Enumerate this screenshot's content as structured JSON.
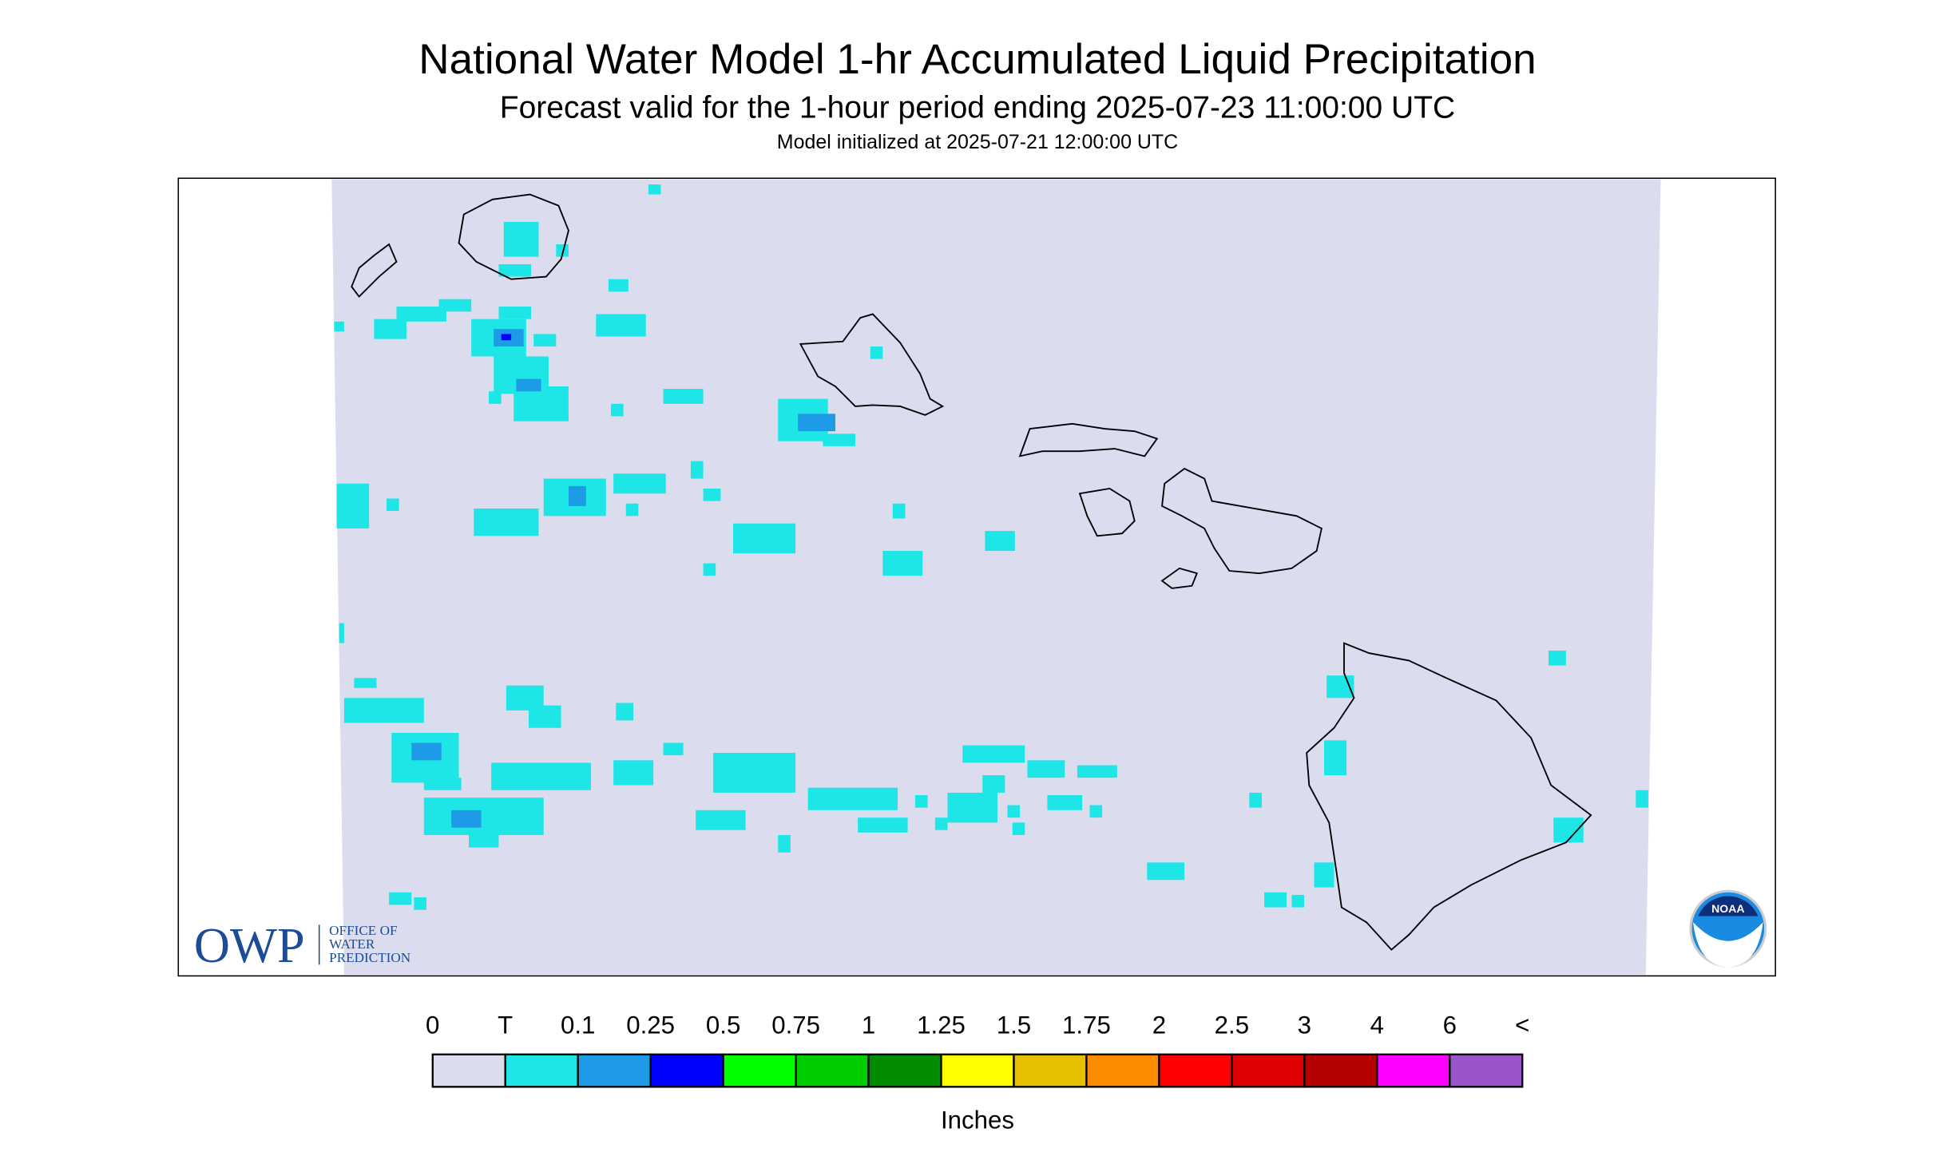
{
  "header": {
    "title": "National Water Model 1-hr Accumulated Liquid Precipitation",
    "subtitle": "Forecast valid for the 1-hour period ending 2025-07-23 11:00:00 UTC",
    "init": "Model initialized at 2025-07-21 12:00:00 UTC"
  },
  "logos": {
    "owp": "OWP",
    "owp_lines": [
      "OFFICE OF",
      "WATER",
      "PREDICTION"
    ],
    "noaa": "NOAA"
  },
  "legend": {
    "labels": [
      "0",
      "T",
      "0.1",
      "0.25",
      "0.5",
      "0.75",
      "1",
      "1.25",
      "1.5",
      "1.75",
      "2",
      "2.5",
      "3",
      "4",
      "6",
      "<"
    ],
    "colors": [
      "#dcdcef",
      "#1ee6e6",
      "#1e9be6",
      "#0000ff",
      "#00ff00",
      "#00cd00",
      "#008b00",
      "#ffff00",
      "#e6c000",
      "#ff8c00",
      "#ff0000",
      "#dc0000",
      "#b40000",
      "#ff00ff",
      "#9955c9"
    ],
    "units": "Inches"
  }
}
